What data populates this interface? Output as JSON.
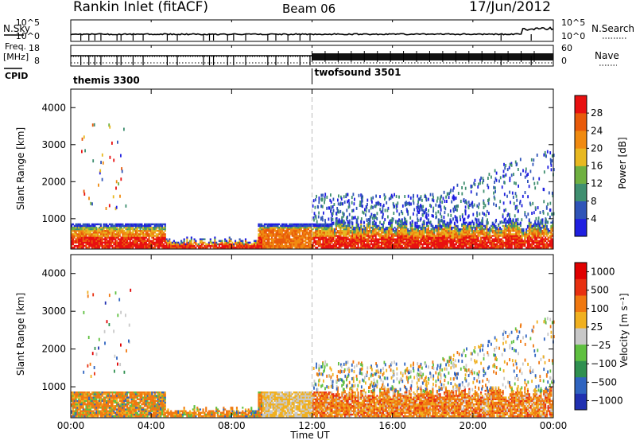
{
  "header": {
    "station": "Rankin Inlet (fitACF)",
    "beam": "Beam 06",
    "date": "17/Jun/2012"
  },
  "noise_panel": {
    "left_label": "N.Sky",
    "left_ticks": [
      "10^5",
      "10^0"
    ],
    "right_label": "N.Search",
    "right_ticks": [
      "10^5",
      "10^0"
    ]
  },
  "freq_panel": {
    "left_label": "Freq.",
    "left_unit": "[MHz]",
    "left_ticks": [
      "18",
      "8"
    ],
    "right_label": "Nave",
    "right_ticks": [
      "60",
      "0"
    ]
  },
  "cpid_panel": {
    "label": "CPID",
    "modes": [
      {
        "name": "themis 3300",
        "start_hour": 0
      },
      {
        "name": "twofsound 3501",
        "start_hour": 12
      }
    ]
  },
  "x_axis": {
    "label": "Time UT",
    "ticks": [
      "00:00",
      "04:00",
      "08:00",
      "12:00",
      "16:00",
      "20:00",
      "00:00"
    ],
    "range_hours": [
      0,
      24
    ]
  },
  "chart_data": [
    {
      "type": "heatmap",
      "name": "power",
      "ylabel": "Slant Range [km]",
      "yticks": [
        1000,
        2000,
        3000,
        4000
      ],
      "ylim": [
        180,
        4500
      ],
      "colorbar_label": "Power [dB]",
      "colorbar_ticks": [
        "4",
        "8",
        "12",
        "16",
        "20",
        "24",
        "28"
      ],
      "colors": [
        "#1f1fe0",
        "#2f54b8",
        "#3f8f70",
        "#6fb040",
        "#e8b820",
        "#f08a10",
        "#e85a0a",
        "#e81010"
      ]
    },
    {
      "type": "heatmap",
      "name": "velocity",
      "ylabel": "Slant Range [km]",
      "yticks": [
        1000,
        2000,
        3000,
        4000
      ],
      "ylim": [
        180,
        4500
      ],
      "colorbar_label": "Velocity [m s⁻¹]",
      "colorbar_ticks": [
        "1000",
        "500",
        "100",
        "25",
        "−25",
        "−100",
        "−500",
        "−1000"
      ],
      "colors": [
        "#2030b0",
        "#2f64c0",
        "#2f9050",
        "#5fc040",
        "#c8c8c8",
        "#f0b020",
        "#f07810",
        "#e83010",
        "#e00000"
      ]
    }
  ]
}
